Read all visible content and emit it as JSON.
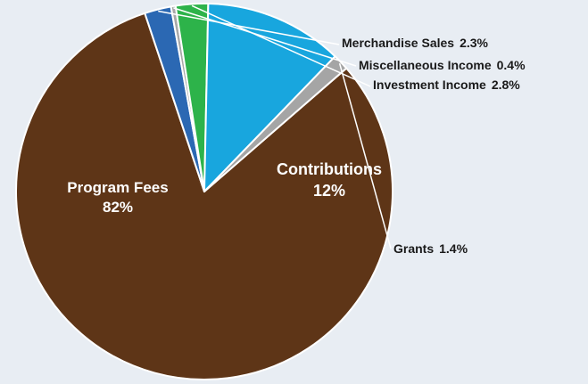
{
  "chart_data": {
    "type": "pie",
    "slices": [
      {
        "label": "Program Fees",
        "value": 82,
        "value_text": "82%",
        "color": "#5e3517",
        "label_style": "inside"
      },
      {
        "label": "Merchandise Sales",
        "value": 2.3,
        "value_text": "2.3%",
        "color": "#2b68b3",
        "label_style": "outside"
      },
      {
        "label": "Miscellaneous Income",
        "value": 0.4,
        "value_text": "0.4%",
        "color": "#a8a8a8",
        "label_style": "outside"
      },
      {
        "label": "Investment Income",
        "value": 2.8,
        "value_text": "2.8%",
        "color": "#2db34a",
        "label_style": "outside"
      },
      {
        "label": "Contributions",
        "value": 12,
        "value_text": "12%",
        "color": "#18a6de",
        "label_style": "inside"
      },
      {
        "label": "Grants",
        "value": 1.4,
        "value_text": "1.4%",
        "color": "#a5a5a5",
        "label_style": "outside"
      }
    ],
    "background_color": "#e8edf3"
  }
}
